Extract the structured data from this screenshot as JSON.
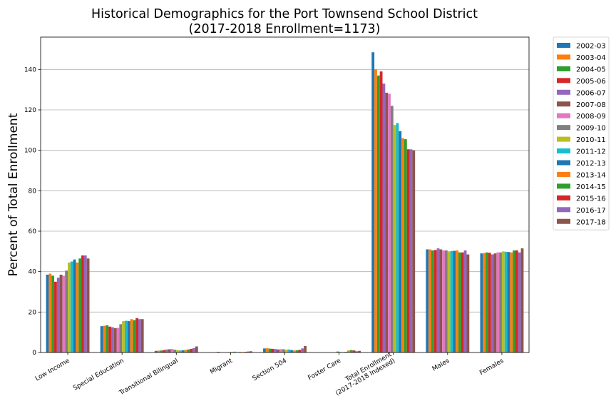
{
  "chart_data": {
    "type": "bar",
    "title": "Historical Demographics for the Port Townsend School District",
    "subtitle": "(2017-2018 Enrollment=1173)",
    "xlabel": "",
    "ylabel": "Percent of Total Enrollment",
    "ylim": [
      0,
      156
    ],
    "yticks": [
      0,
      20,
      40,
      60,
      80,
      100,
      120,
      140
    ],
    "grid": "y",
    "legend_position": "outside-right",
    "categories": [
      "Low Income",
      "Special Education",
      "Transitional Bilingual",
      "Migrant",
      "Section 504",
      "Foster Care",
      "Total Enrollment\n(2017-2018 Indexed)",
      "Males",
      "Females"
    ],
    "series": [
      {
        "name": "2002-03",
        "color": "#1f77b4",
        "values": [
          38.5,
          13.0,
          0.8,
          0.0,
          2.0,
          0.0,
          148.5,
          51.0,
          49.0
        ]
      },
      {
        "name": "2003-04",
        "color": "#ff7f0e",
        "values": [
          39.0,
          13.2,
          0.9,
          0.0,
          2.1,
          0.0,
          140.0,
          51.0,
          49.2
        ]
      },
      {
        "name": "2004-05",
        "color": "#2ca02c",
        "values": [
          38.0,
          13.5,
          1.0,
          0.1,
          1.9,
          0.0,
          137.0,
          50.5,
          49.5
        ]
      },
      {
        "name": "2005-06",
        "color": "#d62728",
        "values": [
          35.0,
          12.8,
          1.2,
          0.3,
          1.8,
          0.0,
          139.0,
          50.7,
          49.3
        ]
      },
      {
        "name": "2006-07",
        "color": "#9467bd",
        "values": [
          37.0,
          12.5,
          1.5,
          0.0,
          1.7,
          0.0,
          133.0,
          51.5,
          48.5
        ]
      },
      {
        "name": "2007-08",
        "color": "#8c564b",
        "values": [
          38.5,
          12.0,
          1.6,
          0.0,
          1.5,
          0.0,
          128.5,
          51.0,
          49.0
        ]
      },
      {
        "name": "2008-09",
        "color": "#e377c2",
        "values": [
          38.0,
          12.2,
          1.7,
          0.1,
          1.6,
          0.0,
          128.0,
          50.5,
          49.5
        ]
      },
      {
        "name": "2009-10",
        "color": "#7f7f7f",
        "values": [
          40.5,
          14.0,
          1.4,
          0.2,
          1.6,
          0.5,
          122.0,
          50.5,
          49.5
        ]
      },
      {
        "name": "2010-11",
        "color": "#bcbd22",
        "values": [
          44.5,
          15.5,
          1.2,
          0.3,
          1.4,
          0.3,
          112.5,
          50.0,
          50.0
        ]
      },
      {
        "name": "2011-12",
        "color": "#17becf",
        "values": [
          45.0,
          15.7,
          1.0,
          0.4,
          1.5,
          0.2,
          113.5,
          50.2,
          49.8
        ]
      },
      {
        "name": "2012-13",
        "color": "#1f77b4",
        "values": [
          46.0,
          15.5,
          1.1,
          0.2,
          1.2,
          0.3,
          109.5,
          50.3,
          49.7
        ]
      },
      {
        "name": "2013-14",
        "color": "#ff7f0e",
        "values": [
          44.5,
          16.5,
          1.3,
          0.3,
          1.0,
          1.0,
          106.0,
          50.5,
          49.5
        ]
      },
      {
        "name": "2014-15",
        "color": "#2ca02c",
        "values": [
          46.5,
          16.0,
          1.5,
          0.2,
          1.1,
          1.2,
          105.5,
          49.5,
          50.5
        ]
      },
      {
        "name": "2015-16",
        "color": "#d62728",
        "values": [
          48.0,
          17.0,
          1.8,
          0.3,
          1.3,
          1.0,
          100.5,
          49.5,
          50.5
        ]
      },
      {
        "name": "2016-17",
        "color": "#9467bd",
        "values": [
          48.0,
          16.5,
          2.2,
          0.5,
          2.0,
          0.6,
          100.5,
          50.5,
          49.5
        ]
      },
      {
        "name": "2017-18",
        "color": "#8c564b",
        "values": [
          46.5,
          16.5,
          3.0,
          0.6,
          3.2,
          0.8,
          100.0,
          48.5,
          51.5
        ]
      }
    ]
  }
}
